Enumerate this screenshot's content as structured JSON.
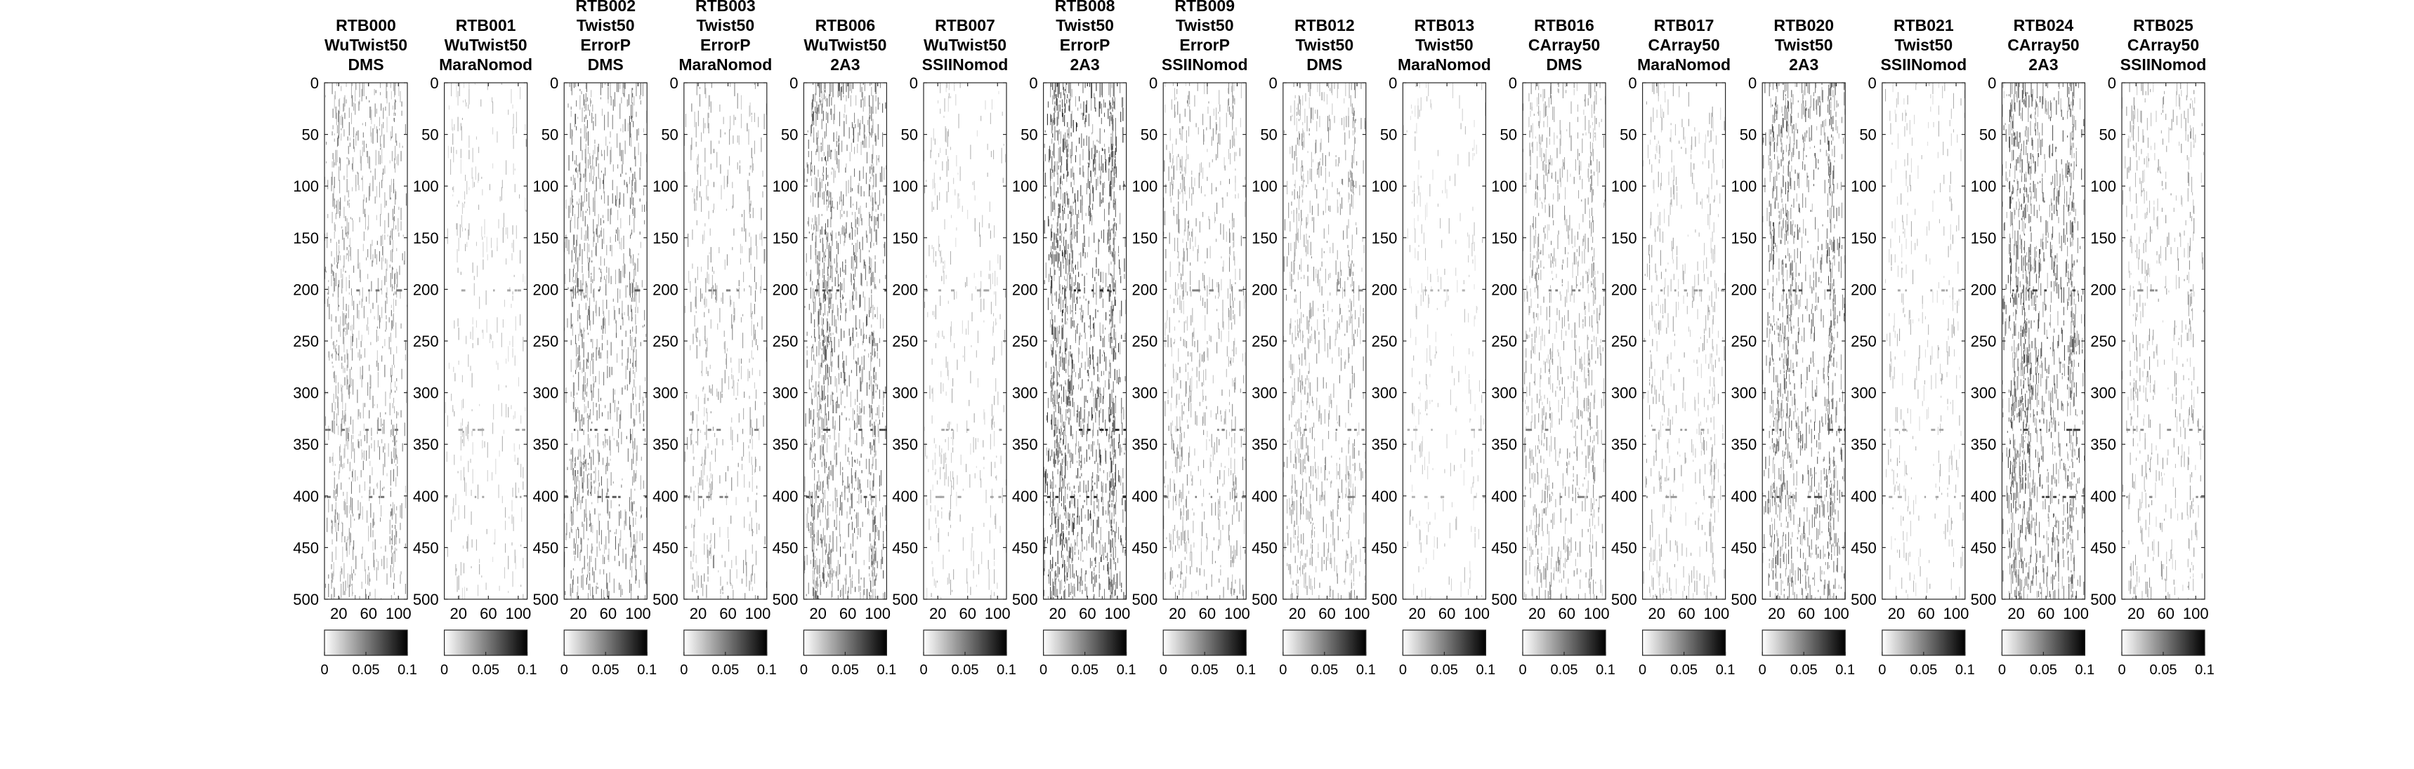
{
  "chart_data": {
    "type": "heatmap",
    "colormap": "white-to-black (gray, reversed)",
    "grid": false,
    "colorbar_location": "below each panel",
    "x_ticks": [
      20,
      60,
      100
    ],
    "y_ticks": [
      0,
      50,
      100,
      150,
      200,
      250,
      300,
      350,
      400,
      450,
      500
    ],
    "x_range": [
      1,
      112
    ],
    "y_range": [
      0,
      500
    ],
    "y_reversed": true,
    "clim": [
      0,
      0.1
    ],
    "colorbar_ticks": [
      "0",
      "0.05",
      "0.1"
    ],
    "panels": [
      {
        "title": [
          "RTB000",
          "WuTwist50",
          "DMS"
        ],
        "density": 0.55,
        "darkness": 0.55
      },
      {
        "title": [
          "RTB001",
          "WuTwist50",
          "MaraNomod"
        ],
        "density": 0.18,
        "darkness": 0.35
      },
      {
        "title": [
          "RTB002",
          "Twist50",
          "ErrorP",
          "DMS"
        ],
        "density": 0.6,
        "darkness": 0.65
      },
      {
        "title": [
          "RTB003",
          "Twist50",
          "ErrorP",
          "MaraNomod"
        ],
        "density": 0.3,
        "darkness": 0.5
      },
      {
        "title": [
          "RTB006",
          "WuTwist50",
          "2A3"
        ],
        "density": 0.75,
        "darkness": 0.7
      },
      {
        "title": [
          "RTB007",
          "WuTwist50",
          "SSIINomod"
        ],
        "density": 0.2,
        "darkness": 0.35
      },
      {
        "title": [
          "RTB008",
          "Twist50",
          "ErrorP",
          "2A3"
        ],
        "density": 0.85,
        "darkness": 0.85
      },
      {
        "title": [
          "RTB009",
          "Twist50",
          "ErrorP",
          "SSIINomod"
        ],
        "density": 0.4,
        "darkness": 0.5
      },
      {
        "title": [
          "RTB012",
          "Twist50",
          "DMS"
        ],
        "density": 0.5,
        "darkness": 0.5
      },
      {
        "title": [
          "RTB013",
          "Twist50",
          "MaraNomod"
        ],
        "density": 0.15,
        "darkness": 0.3
      },
      {
        "title": [
          "RTB016",
          "CArray50",
          "DMS"
        ],
        "density": 0.5,
        "darkness": 0.5
      },
      {
        "title": [
          "RTB017",
          "CArray50",
          "MaraNomod"
        ],
        "density": 0.3,
        "darkness": 0.4
      },
      {
        "title": [
          "RTB020",
          "Twist50",
          "2A3"
        ],
        "density": 0.7,
        "darkness": 0.7
      },
      {
        "title": [
          "RTB021",
          "Twist50",
          "SSIINomod"
        ],
        "density": 0.2,
        "darkness": 0.35
      },
      {
        "title": [
          "RTB024",
          "CArray50",
          "2A3"
        ],
        "density": 0.75,
        "darkness": 0.75
      },
      {
        "title": [
          "RTB025",
          "CArray50",
          "SSIINomod"
        ],
        "density": 0.35,
        "darkness": 0.45
      }
    ]
  }
}
